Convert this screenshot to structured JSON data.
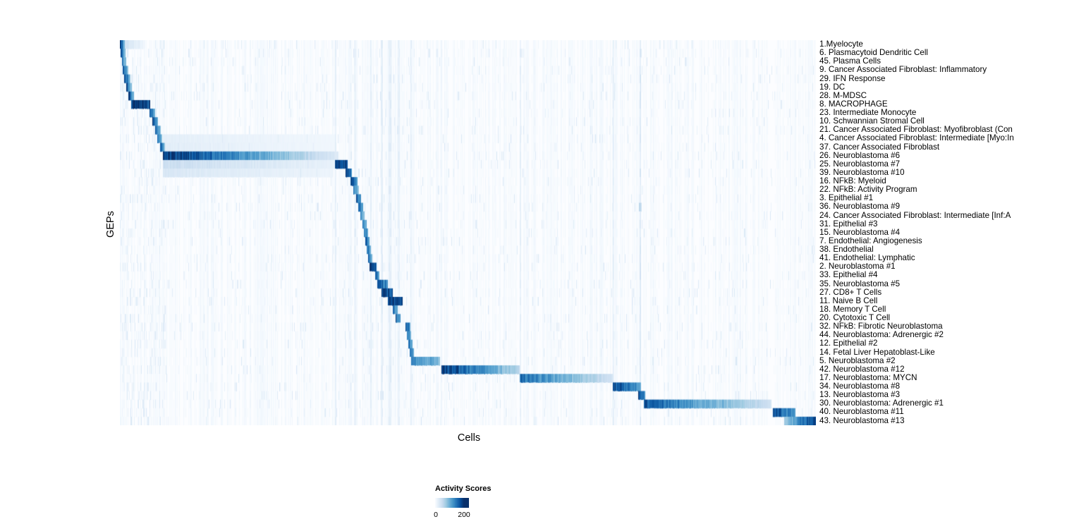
{
  "legend": {
    "title": "Activity Scores",
    "min_label": "0",
    "max_label": "200",
    "bar_value_max": 234
  },
  "chart_data": {
    "type": "heatmap",
    "title": "",
    "xlabel": "Cells",
    "ylabel": "GEPs",
    "value_label": "Activity Scores",
    "value_range": [
      0,
      200
    ],
    "colormap": "Blues",
    "colormap_stops": [
      {
        "value": 0,
        "color": [
          247,
          251,
          255
        ]
      },
      {
        "value": 25,
        "color": [
          222,
          235,
          247
        ]
      },
      {
        "value": 50,
        "color": [
          198,
          219,
          239
        ]
      },
      {
        "value": 75,
        "color": [
          158,
          202,
          225
        ]
      },
      {
        "value": 100,
        "color": [
          107,
          174,
          214
        ]
      },
      {
        "value": 125,
        "color": [
          66,
          146,
          198
        ]
      },
      {
        "value": 150,
        "color": [
          33,
          113,
          181
        ]
      },
      {
        "value": 175,
        "color": [
          8,
          81,
          156
        ]
      },
      {
        "value": 200,
        "color": [
          8,
          48,
          107
        ]
      }
    ],
    "rows": [
      "1.Myelocyte",
      "6. Plasmacytoid Dendritic Cell",
      "45. Plasma Cells",
      "9. Cancer Associated Fibroblast: Inflammatory",
      "29. IFN Response",
      "19. DC",
      "28. M-MDSC",
      "8. MACROPHAGE",
      "23. Intermediate Monocyte",
      "10. Schwannian Stromal Cell",
      "21. Cancer Associated Fibroblast: Myofibroblast (Con",
      "4. Cancer Associated Fibroblast: Intermediate [Myo:In",
      "37. Cancer Associated Fibroblast",
      "26. Neuroblastoma #6",
      "25. Neuroblastoma #7",
      "39. Neuroblastoma #10",
      "16. NFkB: Myeloid",
      "22. NFkB: Activity Program",
      "3. Epithelial #1",
      "36. Neuroblastoma #9",
      "24. Cancer Associated Fibroblast: Intermediate [Inf:A",
      "31. Epithelial #3",
      "15. Neuroblastoma #4",
      "7. Endothelial: Angiogenesis",
      "38. Endothelial",
      "41. Endothelial: Lymphatic",
      "2. Neuroblastoma #1",
      "33. Epithelial #4",
      "35. Neuroblastoma #5",
      "27. CD8+ T Cells",
      "11. Naive B Cell",
      "18. Memory T Cell",
      "20. Cytotoxic T Cell",
      "32. NFkB: Fibrotic Neuroblastoma",
      "44. Neuroblastoma: Adrenergic #2",
      "12. Epithelial #2",
      "14. Fetal Liver Hepatoblast-Like",
      "5. Neuroblastoma #2",
      "42. Neuroblastoma #12",
      "17. Neuroblastoma: MYCN",
      "34. Neuroblastoma #8",
      "13. Neuroblastoma #3",
      "30. Neuroblastoma: Adrenergic #1",
      "40. Neuroblastoma #11",
      "43. Neuroblastoma #13"
    ],
    "blocks": [
      {
        "row": 1,
        "x0": 0.0,
        "x1": 0.007,
        "v0": 200,
        "v1": 90
      },
      {
        "row": 1,
        "x0": 0.007,
        "x1": 0.035,
        "v0": 35,
        "v1": 5
      },
      {
        "row": 2,
        "x0": 0.001,
        "x1": 0.008,
        "v0": 170,
        "v1": 70
      },
      {
        "row": 3,
        "x0": 0.003,
        "x1": 0.009,
        "v0": 150,
        "v1": 60
      },
      {
        "row": 4,
        "x0": 0.004,
        "x1": 0.012,
        "v0": 180,
        "v1": 80
      },
      {
        "row": 5,
        "x0": 0.006,
        "x1": 0.015,
        "v0": 190,
        "v1": 70
      },
      {
        "row": 6,
        "x0": 0.009,
        "x1": 0.017,
        "v0": 180,
        "v1": 70
      },
      {
        "row": 7,
        "x0": 0.012,
        "x1": 0.02,
        "v0": 195,
        "v1": 80
      },
      {
        "row": 8,
        "x0": 0.016,
        "x1": 0.043,
        "v0": 200,
        "v1": 170
      },
      {
        "row": 9,
        "x0": 0.042,
        "x1": 0.05,
        "v0": 185,
        "v1": 90
      },
      {
        "row": 10,
        "x0": 0.046,
        "x1": 0.054,
        "v0": 195,
        "v1": 90
      },
      {
        "row": 11,
        "x0": 0.05,
        "x1": 0.058,
        "v0": 175,
        "v1": 80
      },
      {
        "row": 12,
        "x0": 0.053,
        "x1": 0.06,
        "v0": 165,
        "v1": 70
      },
      {
        "row": 12,
        "x0": 0.061,
        "x1": 0.31,
        "v0": 18,
        "v1": 6
      },
      {
        "row": 13,
        "x0": 0.057,
        "x1": 0.064,
        "v0": 185,
        "v1": 80
      },
      {
        "row": 13,
        "x0": 0.064,
        "x1": 0.31,
        "v0": 20,
        "v1": 6
      },
      {
        "row": 14,
        "x0": 0.061,
        "x1": 0.314,
        "v0": 200,
        "v1": 25
      },
      {
        "row": 15,
        "x0": 0.061,
        "x1": 0.308,
        "v0": 45,
        "v1": 15
      },
      {
        "row": 15,
        "x0": 0.309,
        "x1": 0.327,
        "v0": 200,
        "v1": 180
      },
      {
        "row": 16,
        "x0": 0.061,
        "x1": 0.305,
        "v0": 30,
        "v1": 10
      },
      {
        "row": 16,
        "x0": 0.324,
        "x1": 0.333,
        "v0": 195,
        "v1": 140
      },
      {
        "row": 17,
        "x0": 0.331,
        "x1": 0.341,
        "v0": 185,
        "v1": 120
      },
      {
        "row": 18,
        "x0": 0.335,
        "x1": 0.343,
        "v0": 130,
        "v1": 80
      },
      {
        "row": 19,
        "x0": 0.339,
        "x1": 0.346,
        "v0": 175,
        "v1": 110
      },
      {
        "row": 20,
        "x0": 0.342,
        "x1": 0.349,
        "v0": 165,
        "v1": 100
      },
      {
        "row": 20,
        "x0": 0.745,
        "x1": 0.749,
        "v0": 70,
        "v1": 40
      },
      {
        "row": 21,
        "x0": 0.345,
        "x1": 0.351,
        "v0": 125,
        "v1": 80
      },
      {
        "row": 22,
        "x0": 0.348,
        "x1": 0.354,
        "v0": 155,
        "v1": 100
      },
      {
        "row": 23,
        "x0": 0.35,
        "x1": 0.356,
        "v0": 165,
        "v1": 110
      },
      {
        "row": 24,
        "x0": 0.352,
        "x1": 0.358,
        "v0": 175,
        "v1": 110
      },
      {
        "row": 25,
        "x0": 0.354,
        "x1": 0.36,
        "v0": 165,
        "v1": 100
      },
      {
        "row": 26,
        "x0": 0.356,
        "x1": 0.362,
        "v0": 155,
        "v1": 95
      },
      {
        "row": 27,
        "x0": 0.358,
        "x1": 0.368,
        "v0": 200,
        "v1": 170
      },
      {
        "row": 28,
        "x0": 0.366,
        "x1": 0.372,
        "v0": 165,
        "v1": 100
      },
      {
        "row": 29,
        "x0": 0.369,
        "x1": 0.385,
        "v0": 180,
        "v1": 130
      },
      {
        "row": 30,
        "x0": 0.375,
        "x1": 0.392,
        "v0": 200,
        "v1": 160
      },
      {
        "row": 31,
        "x0": 0.384,
        "x1": 0.406,
        "v0": 200,
        "v1": 175
      },
      {
        "row": 32,
        "x0": 0.392,
        "x1": 0.399,
        "v0": 155,
        "v1": 100
      },
      {
        "row": 33,
        "x0": 0.396,
        "x1": 0.403,
        "v0": 165,
        "v1": 105
      },
      {
        "row": 34,
        "x0": 0.41,
        "x1": 0.417,
        "v0": 175,
        "v1": 110
      },
      {
        "row": 35,
        "x0": 0.412,
        "x1": 0.418,
        "v0": 145,
        "v1": 90
      },
      {
        "row": 36,
        "x0": 0.414,
        "x1": 0.42,
        "v0": 155,
        "v1": 95
      },
      {
        "row": 37,
        "x0": 0.416,
        "x1": 0.422,
        "v0": 165,
        "v1": 100
      },
      {
        "row": 38,
        "x0": 0.418,
        "x1": 0.459,
        "v0": 135,
        "v1": 85
      },
      {
        "row": 39,
        "x0": 0.461,
        "x1": 0.574,
        "v0": 200,
        "v1": 55
      },
      {
        "row": 40,
        "x0": 0.574,
        "x1": 0.708,
        "v0": 155,
        "v1": 35
      },
      {
        "row": 41,
        "x0": 0.708,
        "x1": 0.748,
        "v0": 185,
        "v1": 110
      },
      {
        "row": 42,
        "x0": 0.744,
        "x1": 0.754,
        "v0": 185,
        "v1": 130
      },
      {
        "row": 43,
        "x0": 0.752,
        "x1": 0.936,
        "v0": 165,
        "v1": 40
      },
      {
        "row": 44,
        "x0": 0.938,
        "x1": 0.97,
        "v0": 185,
        "v1": 110
      },
      {
        "row": 45,
        "x0": 0.954,
        "x1": 1.0,
        "v0": 70,
        "v1": 200
      }
    ],
    "stripes": [
      {
        "x": 0.309,
        "w": 0.002,
        "v": 18
      },
      {
        "x": 0.336,
        "w": 0.003,
        "v": 14
      },
      {
        "x": 0.359,
        "w": 0.002,
        "v": 16
      },
      {
        "x": 0.374,
        "w": 0.003,
        "v": 20
      },
      {
        "x": 0.386,
        "w": 0.004,
        "v": 20
      },
      {
        "x": 0.399,
        "w": 0.003,
        "v": 16
      },
      {
        "x": 0.417,
        "w": 0.002,
        "v": 14
      },
      {
        "x": 0.461,
        "w": 0.002,
        "v": 12
      },
      {
        "x": 0.574,
        "w": 0.002,
        "v": 18
      },
      {
        "x": 0.708,
        "w": 0.002,
        "v": 16
      },
      {
        "x": 0.746,
        "w": 0.002,
        "v": 30
      }
    ],
    "noise": {
      "seed": 42,
      "base_max": 7,
      "speckle_prob": 0.05,
      "speckle_max": 30,
      "left_region_end": 0.065,
      "left_speckle_prob": 0.18
    }
  }
}
